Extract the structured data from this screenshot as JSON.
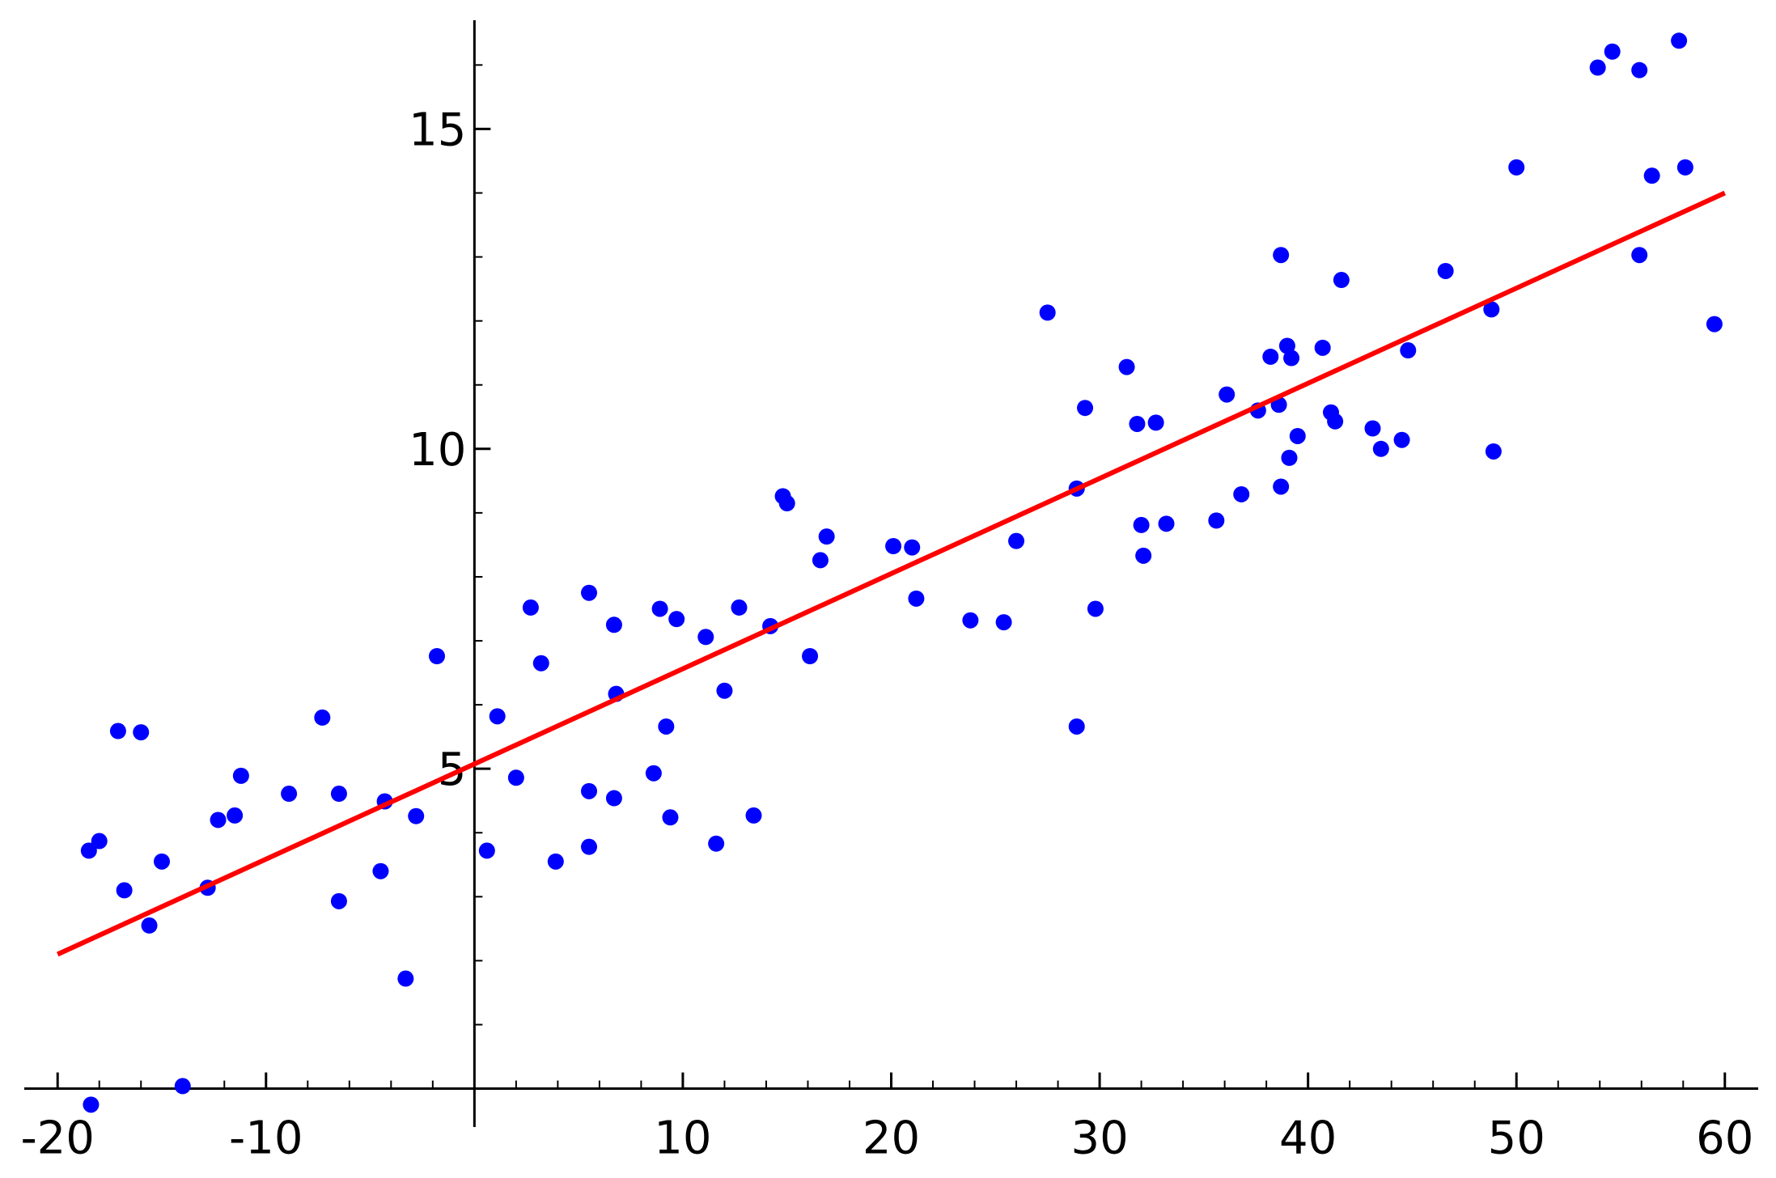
{
  "chart_data": {
    "type": "scatter",
    "color": "#0000ff",
    "x": [
      -18.4,
      -18.5,
      -18.0,
      -17.1,
      -16.8,
      -16.0,
      -15.6,
      -15.0,
      -14.0,
      -12.8,
      -12.3,
      -11.5,
      -11.2,
      -8.9,
      -7.3,
      -6.5,
      -6.5,
      -4.5,
      -4.3,
      -3.3,
      -2.8,
      -1.8,
      0.6,
      1.1,
      2.0,
      2.7,
      3.2,
      3.9,
      5.5,
      5.5,
      5.5,
      6.7,
      6.7,
      6.8,
      8.6,
      8.9,
      9.2,
      9.4,
      9.7,
      11.1,
      11.6,
      12.0,
      12.7,
      13.4,
      14.2,
      14.8,
      15.0,
      16.1,
      16.6,
      16.9,
      20.1,
      21.0,
      21.2,
      23.8,
      25.4,
      26.0,
      27.5,
      28.9,
      28.9,
      29.3,
      29.8,
      31.3,
      31.8,
      32.0,
      32.1,
      32.7,
      33.2,
      35.6,
      36.1,
      36.8,
      37.6,
      38.2,
      38.6,
      38.7,
      38.7,
      39.0,
      39.2,
      39.1,
      39.5,
      40.7,
      41.1,
      41.3,
      41.6,
      43.1,
      43.5,
      44.5,
      44.8,
      46.6,
      48.8,
      48.9,
      50.0,
      53.9,
      54.6,
      55.9,
      55.9,
      56.5,
      57.8,
      58.1,
      59.5
    ],
    "values": [
      -0.25,
      3.72,
      3.87,
      5.59,
      3.1,
      5.57,
      2.55,
      3.55,
      0.04,
      3.14,
      4.2,
      4.27,
      4.89,
      4.61,
      5.8,
      4.61,
      2.93,
      3.4,
      4.49,
      1.72,
      4.26,
      6.76,
      3.72,
      5.82,
      4.86,
      7.52,
      6.65,
      3.55,
      7.75,
      4.65,
      3.78,
      4.54,
      7.25,
      6.17,
      4.93,
      7.5,
      5.66,
      4.24,
      7.34,
      7.06,
      3.83,
      6.22,
      7.52,
      4.27,
      7.23,
      9.26,
      9.15,
      6.76,
      8.26,
      8.63,
      8.48,
      8.46,
      7.66,
      7.32,
      7.29,
      8.56,
      12.13,
      5.66,
      9.38,
      10.64,
      7.5,
      11.28,
      10.39,
      8.81,
      8.33,
      10.41,
      8.83,
      8.88,
      10.85,
      9.29,
      10.6,
      11.44,
      10.69,
      9.41,
      13.03,
      11.61,
      11.42,
      9.86,
      10.2,
      11.58,
      10.57,
      10.43,
      12.64,
      10.32,
      10.0,
      10.14,
      11.54,
      12.78,
      12.18,
      9.96,
      14.4,
      15.96,
      16.21,
      15.92,
      13.03,
      14.27,
      16.38,
      14.4,
      11.95
    ],
    "fit": {
      "type": "line",
      "color": "#ff0000",
      "x": [
        -20,
        60
      ],
      "values": [
        2.1,
        14.0
      ]
    },
    "xlim": [
      -21.6,
      61.6
    ],
    "ylim": [
      -0.6,
      16.7
    ],
    "xticks": [
      -20,
      -10,
      10,
      20,
      30,
      40,
      50,
      60
    ],
    "yticks": [
      5,
      10,
      15
    ],
    "xminorticks": [
      -20,
      -18,
      -16,
      -14,
      -12,
      -10,
      -8,
      -6,
      -4,
      -2,
      2,
      4,
      6,
      8,
      10,
      12,
      14,
      16,
      18,
      20,
      22,
      24,
      26,
      28,
      30,
      32,
      34,
      36,
      38,
      40,
      42,
      44,
      46,
      48,
      50,
      52,
      54,
      56,
      58,
      60
    ],
    "yminorticks": [
      1,
      2,
      3,
      4,
      5,
      6,
      7,
      8,
      9,
      10,
      11,
      12,
      13,
      14,
      15,
      16
    ]
  }
}
